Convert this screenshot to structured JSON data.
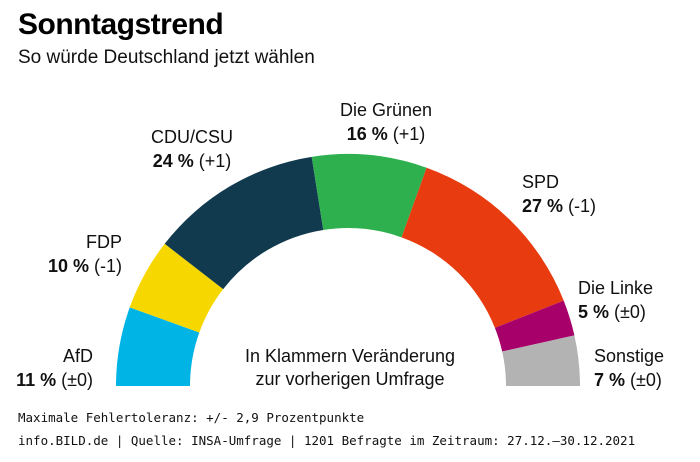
{
  "header": {
    "title": "Sonntagstrend",
    "subtitle": "So würde Deutschland jetzt wählen"
  },
  "chart_data": {
    "type": "pie",
    "variant": "semicircle",
    "unit": "%",
    "parties": [
      {
        "name": "AfD",
        "value": 11,
        "change": "(±0)",
        "color": "#00b4e6"
      },
      {
        "name": "FDP",
        "value": 10,
        "change": "(-1)",
        "color": "#f6d800"
      },
      {
        "name": "CDU/CSU",
        "value": 24,
        "change": "(+1)",
        "color": "#123a4e"
      },
      {
        "name": "Die Grünen",
        "value": 16,
        "change": "(+1)",
        "color": "#2eb04f"
      },
      {
        "name": "SPD",
        "value": 27,
        "change": "(-1)",
        "color": "#e83b0f"
      },
      {
        "name": "Die Linke",
        "value": 5,
        "change": "(±0)",
        "color": "#a8006a"
      },
      {
        "name": "Sonstige",
        "value": 7,
        "change": "(±0)",
        "color": "#b3b3b3"
      }
    ],
    "note_line1": "In Klammern Veränderung",
    "note_line2": "zur vorherigen Umfrage"
  },
  "footer": {
    "line1": "Maximale Fehlertoleranz: +/- 2,9 Prozentpunkte",
    "line2": "info.BILD.de | Quelle: INSA-Umfrage | 1201 Befragte im Zeitraum: 27.12.–30.12.2021"
  }
}
